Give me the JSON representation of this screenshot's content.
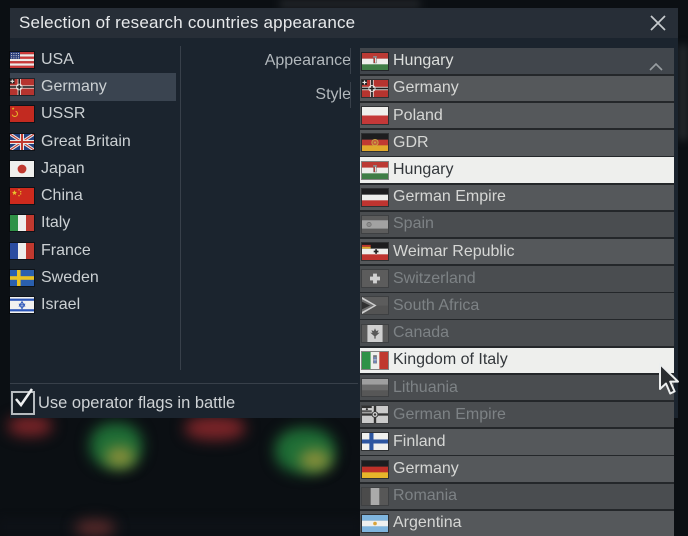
{
  "dialog": {
    "title": "Selection of research countries appearance"
  },
  "icons": {
    "close_icon": "x-cross",
    "dropdown_chevron_icon": "chevron-up",
    "checkmark_icon": "check",
    "cursor_icon": "arrow-pointer"
  },
  "countries": {
    "items": [
      {
        "label": "USA",
        "flag": "usa",
        "selected": false
      },
      {
        "label": "Germany",
        "flag": "germany-ww2",
        "selected": true
      },
      {
        "label": "USSR",
        "flag": "ussr",
        "selected": false
      },
      {
        "label": "Great Britain",
        "flag": "great-britain",
        "selected": false
      },
      {
        "label": "Japan",
        "flag": "japan",
        "selected": false
      },
      {
        "label": "China",
        "flag": "china",
        "selected": false
      },
      {
        "label": "Italy",
        "flag": "italy",
        "selected": false
      },
      {
        "label": "France",
        "flag": "france",
        "selected": false
      },
      {
        "label": "Sweden",
        "flag": "sweden",
        "selected": false
      },
      {
        "label": "Israel",
        "flag": "israel",
        "selected": false
      }
    ]
  },
  "settings": {
    "appearance_label": "Appearance",
    "style_label": "Style"
  },
  "appearance_dropdown": {
    "selected": {
      "label": "Hungary",
      "flag": "hungary"
    },
    "options": [
      {
        "label": "Germany",
        "flag": "germany-ww2",
        "state": "normal"
      },
      {
        "label": "Poland",
        "flag": "poland",
        "state": "normal"
      },
      {
        "label": "GDR",
        "flag": "gdr",
        "state": "normal"
      },
      {
        "label": "Hungary",
        "flag": "hungary",
        "state": "selected"
      },
      {
        "label": "German Empire",
        "flag": "german-empire",
        "state": "normal"
      },
      {
        "label": "Spain",
        "flag": "spain",
        "state": "disabled"
      },
      {
        "label": "Weimar Republic",
        "flag": "weimar-republic",
        "state": "normal"
      },
      {
        "label": "Switzerland",
        "flag": "switzerland",
        "state": "disabled"
      },
      {
        "label": "South Africa",
        "flag": "south-africa",
        "state": "disabled"
      },
      {
        "label": "Canada",
        "flag": "canada",
        "state": "disabled"
      },
      {
        "label": "Kingdom of Italy",
        "flag": "kingdom-of-italy",
        "state": "hover"
      },
      {
        "label": "Lithuania",
        "flag": "lithuania",
        "state": "disabled"
      },
      {
        "label": "German Empire",
        "flag": "german-empire-war",
        "state": "disabled"
      },
      {
        "label": "Finland",
        "flag": "finland",
        "state": "normal"
      },
      {
        "label": "Germany",
        "flag": "germany-modern",
        "state": "normal"
      },
      {
        "label": "Romania",
        "flag": "romania",
        "state": "disabled"
      },
      {
        "label": "Argentina",
        "flag": "argentina",
        "state": "normal"
      }
    ]
  },
  "footer": {
    "checkbox_label": "Use operator flags in battle",
    "checkbox_checked": true
  },
  "colors": {
    "dialog_bg": "#1b242e",
    "titlebar_bg": "#272e37",
    "row_bg": "#55585b",
    "row_disabled_bg": "#4a4d50",
    "row_selected_bg": "#eeefed",
    "selected_country_bg": "#3a4450",
    "text_light": "#d6d7d5",
    "text_disabled": "#7d8285"
  }
}
